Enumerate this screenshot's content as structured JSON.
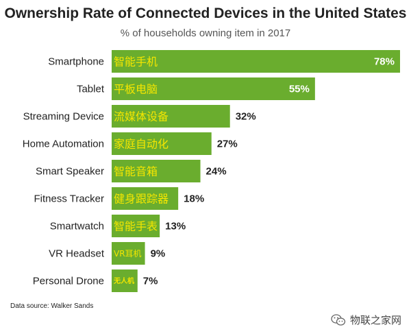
{
  "chart_data": {
    "type": "bar",
    "orientation": "horizontal",
    "title": "Ownership Rate of Connected Devices in the United States",
    "subtitle": "% of households owning item in 2017",
    "categories": [
      "Smartphone",
      "Tablet",
      "Streaming Device",
      "Home Automation",
      "Smart Speaker",
      "Fitness Tracker",
      "Smartwatch",
      "VR Headset",
      "Personal Drone"
    ],
    "bar_labels": [
      "智能手机",
      "平板电脑",
      "流媒体设备",
      "家庭自动化",
      "智能音箱",
      "健身跟踪器",
      "智能手表",
      "VR耳机",
      "无人机"
    ],
    "values": [
      78,
      55,
      32,
      27,
      24,
      18,
      13,
      9,
      7
    ],
    "value_labels": [
      "78%",
      "55%",
      "32%",
      "27%",
      "24%",
      "18%",
      "13%",
      "9%",
      "7%"
    ],
    "xlim": [
      0,
      78
    ],
    "grid": false,
    "colors": {
      "bar": "#6aad2e",
      "bar_text": "#f4e600",
      "value_text": "#222222",
      "value_text_inside": "#ffffff"
    }
  },
  "source": "Data source: Walker Sands",
  "watermark": "物联之家网",
  "watermark_icon": "wechat-icon"
}
